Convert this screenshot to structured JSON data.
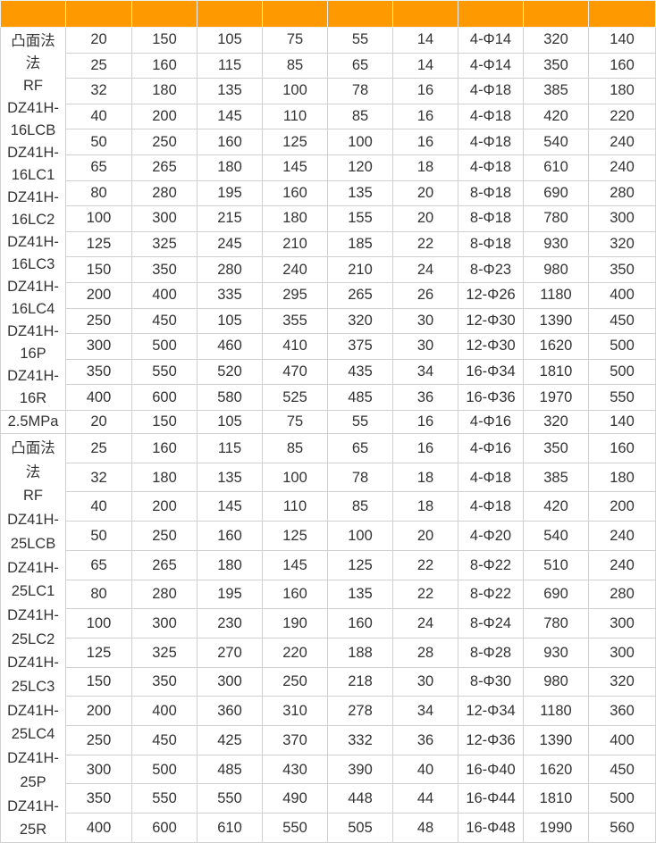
{
  "header": {
    "columns": [
      "",
      "",
      "",
      "",
      "",
      "",
      "",
      "",
      "",
      ""
    ],
    "color": "#ff9900"
  },
  "groups": [
    {
      "label": "",
      "model_text": "凸面法\n法\nRF\nDZ41H-\n16LCB\nDZ41H-\n16LC1\nDZ41H-\n16LC2\nDZ41H-\n16LC3\nDZ41H-\n16LC4\nDZ41H-\n16P\nDZ41H-\n16R",
      "rows": [
        [
          "20",
          "150",
          "105",
          "75",
          "55",
          "14",
          "4-Φ14",
          "320",
          "140"
        ],
        [
          "25",
          "160",
          "115",
          "85",
          "65",
          "14",
          "4-Φ14",
          "350",
          "160"
        ],
        [
          "32",
          "180",
          "135",
          "100",
          "78",
          "16",
          "4-Φ18",
          "385",
          "180"
        ],
        [
          "40",
          "200",
          "145",
          "110",
          "85",
          "16",
          "4-Φ18",
          "420",
          "220"
        ],
        [
          "50",
          "250",
          "160",
          "125",
          "100",
          "16",
          "4-Φ18",
          "540",
          "240"
        ],
        [
          "65",
          "265",
          "180",
          "145",
          "120",
          "18",
          "4-Φ18",
          "610",
          "240"
        ],
        [
          "80",
          "280",
          "195",
          "160",
          "135",
          "20",
          "8-Φ18",
          "690",
          "280"
        ],
        [
          "100",
          "300",
          "215",
          "180",
          "155",
          "20",
          "8-Φ18",
          "780",
          "300"
        ],
        [
          "125",
          "325",
          "245",
          "210",
          "185",
          "22",
          "8-Φ18",
          "930",
          "320"
        ],
        [
          "150",
          "350",
          "280",
          "240",
          "210",
          "24",
          "8-Φ23",
          "980",
          "350"
        ],
        [
          "200",
          "400",
          "335",
          "295",
          "265",
          "26",
          "12-Φ26",
          "1180",
          "400"
        ],
        [
          "250",
          "450",
          "105",
          "355",
          "320",
          "30",
          "12-Φ30",
          "1390",
          "450"
        ],
        [
          "300",
          "500",
          "460",
          "410",
          "375",
          "30",
          "12-Φ30",
          "1620",
          "500"
        ],
        [
          "350",
          "550",
          "520",
          "470",
          "435",
          "34",
          "16-Φ34",
          "1810",
          "500"
        ],
        [
          "400",
          "600",
          "580",
          "525",
          "485",
          "36",
          "16-Φ36",
          "1970",
          "550"
        ]
      ]
    },
    {
      "label": "2.5MPa",
      "model_text": "凸面法\n法\nRF\nDZ41H-\n25LCB\nDZ41H-\n25LC1\nDZ41H-\n25LC2\nDZ41H-\n25LC3\nDZ41H-\n25LC4\nDZ41H-\n25P\nDZ41H-\n25R",
      "rows": [
        [
          "20",
          "150",
          "105",
          "75",
          "55",
          "16",
          "4-Φ16",
          "320",
          "140"
        ],
        [
          "25",
          "160",
          "115",
          "85",
          "65",
          "16",
          "4-Φ16",
          "350",
          "160"
        ],
        [
          "32",
          "180",
          "135",
          "100",
          "78",
          "18",
          "4-Φ18",
          "385",
          "180"
        ],
        [
          "40",
          "200",
          "145",
          "110",
          "85",
          "18",
          "4-Φ18",
          "420",
          "200"
        ],
        [
          "50",
          "250",
          "160",
          "125",
          "100",
          "20",
          "4-Φ20",
          "540",
          "240"
        ],
        [
          "65",
          "265",
          "180",
          "145",
          "125",
          "22",
          "8-Φ22",
          "510",
          "240"
        ],
        [
          "80",
          "280",
          "195",
          "160",
          "135",
          "22",
          "8-Φ22",
          "690",
          "280"
        ],
        [
          "100",
          "300",
          "230",
          "190",
          "160",
          "24",
          "8-Φ24",
          "780",
          "300"
        ],
        [
          "125",
          "325",
          "270",
          "220",
          "188",
          "28",
          "8-Φ28",
          "930",
          "300"
        ],
        [
          "150",
          "350",
          "300",
          "250",
          "218",
          "30",
          "8-Φ30",
          "980",
          "320"
        ],
        [
          "200",
          "400",
          "360",
          "310",
          "278",
          "34",
          "12-Φ34",
          "1180",
          "360"
        ],
        [
          "250",
          "450",
          "425",
          "370",
          "332",
          "36",
          "12-Φ36",
          "1390",
          "400"
        ],
        [
          "300",
          "500",
          "485",
          "430",
          "390",
          "40",
          "16-Φ40",
          "1620",
          "450"
        ],
        [
          "350",
          "550",
          "550",
          "490",
          "448",
          "44",
          "16-Φ44",
          "1810",
          "500"
        ],
        [
          "400",
          "600",
          "610",
          "550",
          "505",
          "48",
          "16-Φ48",
          "1990",
          "560"
        ]
      ]
    }
  ]
}
